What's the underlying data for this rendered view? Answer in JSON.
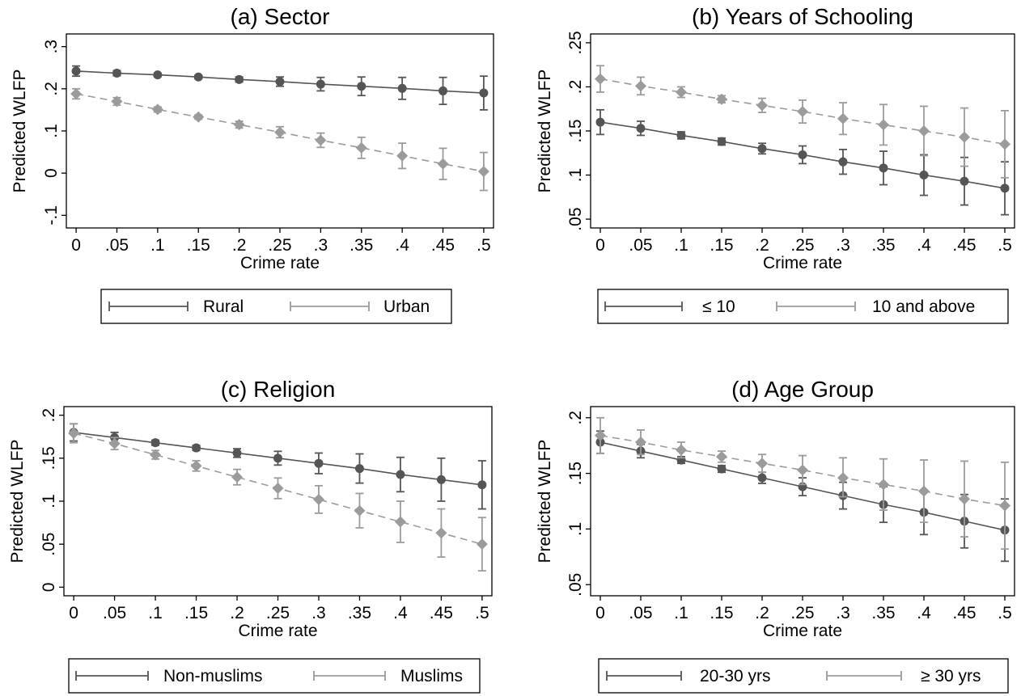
{
  "colors": {
    "series_dark": "#555555",
    "series_light": "#9b9b9b",
    "axis": "#000000",
    "background": "#ffffff"
  },
  "chart_data": [
    {
      "type": "line",
      "title": "(a) Sector",
      "xlabel": "Crime rate",
      "ylabel": "Predicted WLFP",
      "x": [
        0,
        0.05,
        0.1,
        0.15,
        0.2,
        0.25,
        0.3,
        0.35,
        0.4,
        0.45,
        0.5
      ],
      "x_tick_labels": [
        "0",
        ".05",
        ".1",
        ".15",
        ".2",
        ".25",
        ".3",
        ".35",
        ".4",
        ".45",
        ".5"
      ],
      "y_ticks": [
        -0.1,
        0,
        0.1,
        0.2,
        0.3
      ],
      "y_tick_labels": [
        "-.1",
        "0",
        ".1",
        ".2",
        ".3"
      ],
      "ylim": [
        -0.13,
        0.33
      ],
      "xlim": [
        -0.012,
        0.512
      ],
      "grid": false,
      "legend": "bottom",
      "series": [
        {
          "name": "Rural",
          "style": "solid",
          "marker": "circle",
          "color": "#555555",
          "values": [
            0.242,
            0.237,
            0.233,
            0.228,
            0.222,
            0.217,
            0.211,
            0.206,
            0.201,
            0.195,
            0.19
          ],
          "lower": [
            0.23,
            0.231,
            0.229,
            0.224,
            0.216,
            0.206,
            0.195,
            0.184,
            0.175,
            0.163,
            0.15
          ],
          "upper": [
            0.254,
            0.243,
            0.237,
            0.232,
            0.228,
            0.228,
            0.227,
            0.228,
            0.227,
            0.227,
            0.23
          ]
        },
        {
          "name": "Urban",
          "style": "dashed",
          "marker": "diamond",
          "color": "#9b9b9b",
          "values": [
            0.188,
            0.17,
            0.151,
            0.133,
            0.115,
            0.097,
            0.078,
            0.06,
            0.041,
            0.022,
            0.004
          ],
          "lower": [
            0.176,
            0.161,
            0.145,
            0.128,
            0.107,
            0.084,
            0.061,
            0.035,
            0.011,
            -0.015,
            -0.041
          ],
          "upper": [
            0.2,
            0.179,
            0.157,
            0.138,
            0.123,
            0.11,
            0.095,
            0.085,
            0.071,
            0.059,
            0.049
          ]
        }
      ]
    },
    {
      "type": "line",
      "title": "(b) Years of Schooling",
      "xlabel": "Crime rate",
      "ylabel": "Predicted WLFP",
      "x": [
        0,
        0.05,
        0.1,
        0.15,
        0.2,
        0.25,
        0.3,
        0.35,
        0.4,
        0.45,
        0.5
      ],
      "x_tick_labels": [
        "0",
        ".05",
        ".1",
        ".15",
        ".2",
        ".25",
        ".3",
        ".35",
        ".4",
        ".45",
        ".5"
      ],
      "y_ticks": [
        0.05,
        0.1,
        0.15,
        0.2,
        0.25
      ],
      "y_tick_labels": [
        ".05",
        ".1",
        ".15",
        ".2",
        ".25"
      ],
      "ylim": [
        0.04,
        0.26
      ],
      "xlim": [
        -0.012,
        0.512
      ],
      "grid": false,
      "legend": "bottom",
      "series": [
        {
          "name": "≤ 10",
          "style": "solid",
          "marker": "circle",
          "color": "#555555",
          "values": [
            0.16,
            0.153,
            0.145,
            0.138,
            0.13,
            0.123,
            0.115,
            0.108,
            0.1,
            0.093,
            0.085
          ],
          "lower": [
            0.146,
            0.145,
            0.141,
            0.134,
            0.124,
            0.113,
            0.101,
            0.089,
            0.077,
            0.066,
            0.055
          ],
          "upper": [
            0.174,
            0.161,
            0.149,
            0.142,
            0.136,
            0.133,
            0.129,
            0.127,
            0.123,
            0.12,
            0.115
          ]
        },
        {
          "name": "10 and above",
          "style": "dashed",
          "marker": "diamond",
          "color": "#9b9b9b",
          "values": [
            0.209,
            0.201,
            0.194,
            0.186,
            0.179,
            0.172,
            0.164,
            0.157,
            0.15,
            0.143,
            0.135
          ],
          "lower": [
            0.194,
            0.191,
            0.188,
            0.182,
            0.171,
            0.159,
            0.146,
            0.134,
            0.122,
            0.11,
            0.097
          ],
          "upper": [
            0.224,
            0.211,
            0.2,
            0.19,
            0.187,
            0.185,
            0.182,
            0.18,
            0.178,
            0.176,
            0.173
          ]
        }
      ]
    },
    {
      "type": "line",
      "title": "(c) Religion",
      "xlabel": "Crime rate",
      "ylabel": "Predicted WLFP",
      "x": [
        0,
        0.05,
        0.1,
        0.15,
        0.2,
        0.25,
        0.3,
        0.35,
        0.4,
        0.45,
        0.5
      ],
      "x_tick_labels": [
        "0",
        ".05",
        ".1",
        ".15",
        ".2",
        ".25",
        ".3",
        ".35",
        ".4",
        ".45",
        ".5"
      ],
      "y_ticks": [
        0,
        0.05,
        0.1,
        0.15,
        0.2
      ],
      "y_tick_labels": [
        "0",
        ".05",
        ".1",
        ".15",
        ".2"
      ],
      "ylim": [
        -0.01,
        0.21
      ],
      "xlim": [
        -0.012,
        0.512
      ],
      "grid": false,
      "legend": "bottom",
      "series": [
        {
          "name": "Non-muslims",
          "style": "solid",
          "marker": "circle",
          "color": "#555555",
          "values": [
            0.18,
            0.174,
            0.168,
            0.162,
            0.156,
            0.15,
            0.144,
            0.138,
            0.131,
            0.125,
            0.119
          ],
          "lower": [
            0.17,
            0.168,
            0.165,
            0.159,
            0.151,
            0.142,
            0.132,
            0.121,
            0.111,
            0.1,
            0.091
          ],
          "upper": [
            0.19,
            0.18,
            0.171,
            0.165,
            0.161,
            0.158,
            0.156,
            0.155,
            0.151,
            0.15,
            0.147
          ]
        },
        {
          "name": "Muslims",
          "style": "dashed",
          "marker": "diamond",
          "color": "#9b9b9b",
          "values": [
            0.179,
            0.167,
            0.154,
            0.141,
            0.128,
            0.115,
            0.102,
            0.089,
            0.076,
            0.063,
            0.05
          ],
          "lower": [
            0.168,
            0.16,
            0.149,
            0.135,
            0.119,
            0.103,
            0.086,
            0.069,
            0.052,
            0.035,
            0.019
          ],
          "upper": [
            0.19,
            0.174,
            0.159,
            0.147,
            0.137,
            0.127,
            0.118,
            0.109,
            0.1,
            0.091,
            0.081
          ]
        }
      ]
    },
    {
      "type": "line",
      "title": "(d) Age Group",
      "xlabel": "Crime rate",
      "ylabel": "Predicted WLFP",
      "x": [
        0,
        0.05,
        0.1,
        0.15,
        0.2,
        0.25,
        0.3,
        0.35,
        0.4,
        0.45,
        0.5
      ],
      "x_tick_labels": [
        "0",
        ".05",
        ".1",
        ".15",
        ".2",
        ".25",
        ".3",
        ".35",
        ".4",
        ".45",
        ".5"
      ],
      "y_ticks": [
        0.05,
        0.1,
        0.15,
        0.2
      ],
      "y_tick_labels": [
        ".05",
        ".1",
        ".15",
        ".2"
      ],
      "ylim": [
        0.04,
        0.21
      ],
      "xlim": [
        -0.012,
        0.512
      ],
      "grid": false,
      "legend": "bottom",
      "series": [
        {
          "name": "20-30 yrs",
          "style": "solid",
          "marker": "circle",
          "color": "#555555",
          "values": [
            0.178,
            0.17,
            0.162,
            0.154,
            0.146,
            0.138,
            0.13,
            0.122,
            0.115,
            0.107,
            0.099
          ],
          "lower": [
            0.168,
            0.164,
            0.159,
            0.151,
            0.141,
            0.13,
            0.118,
            0.106,
            0.095,
            0.083,
            0.071
          ],
          "upper": [
            0.188,
            0.176,
            0.165,
            0.157,
            0.151,
            0.146,
            0.142,
            0.138,
            0.135,
            0.131,
            0.127
          ]
        },
        {
          "name": "≥ 30 yrs",
          "style": "dashed",
          "marker": "diamond",
          "color": "#9b9b9b",
          "values": [
            0.184,
            0.178,
            0.171,
            0.165,
            0.159,
            0.153,
            0.146,
            0.14,
            0.134,
            0.127,
            0.121
          ],
          "lower": [
            0.168,
            0.167,
            0.164,
            0.16,
            0.151,
            0.14,
            0.129,
            0.117,
            0.106,
            0.093,
            0.082
          ],
          "upper": [
            0.2,
            0.189,
            0.178,
            0.17,
            0.167,
            0.166,
            0.164,
            0.163,
            0.162,
            0.161,
            0.16
          ]
        }
      ]
    }
  ]
}
